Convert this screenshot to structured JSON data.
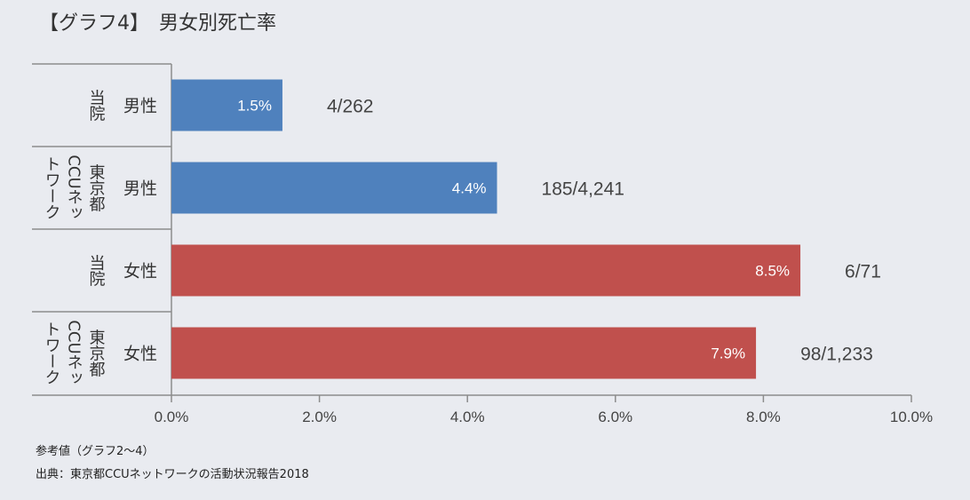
{
  "title": "【グラフ4】　男女別死亡率",
  "chart_data": {
    "type": "bar",
    "orientation": "horizontal",
    "rows": [
      {
        "group": "当院",
        "sex": "男性",
        "value": 1.5,
        "value_label": "1.5%",
        "count": "4/262",
        "color": "#4f81bd"
      },
      {
        "group": "東京都CCUネットワーク",
        "group_lines": [
          "東京都",
          "CCUネッ",
          "トワーク"
        ],
        "sex": "男性",
        "value": 4.4,
        "value_label": "4.4%",
        "count": "185/4,241",
        "color": "#4f81bd"
      },
      {
        "group": "当院",
        "sex": "女性",
        "value": 8.5,
        "value_label": "8.5%",
        "count": "6/71",
        "color": "#c0504d"
      },
      {
        "group": "東京都CCUネットワーク",
        "group_lines": [
          "東京都",
          "CCUネッ",
          "トワーク"
        ],
        "sex": "女性",
        "value": 7.9,
        "value_label": "7.9%",
        "count": "98/1,233",
        "color": "#c0504d"
      }
    ],
    "xlim": [
      0,
      10
    ],
    "xticks": [
      "0.0%",
      "2.0%",
      "4.0%",
      "6.0%",
      "8.0%",
      "10.0%"
    ],
    "grid": false
  },
  "footer": {
    "note": "参考値（グラフ2〜4）",
    "source": "出典：東京都CCUネットワークの活動状況報告2018"
  }
}
